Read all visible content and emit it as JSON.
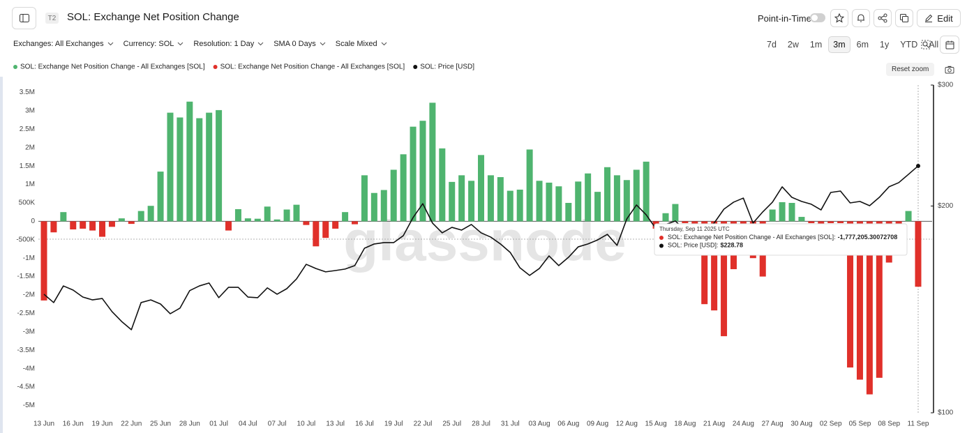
{
  "header": {
    "badge": "T2",
    "title": "SOL: Exchange Net Position Change",
    "point_in_time": "Point-in-Time",
    "edit": "Edit"
  },
  "filters": [
    "Exchanges: All Exchanges",
    "Currency: SOL",
    "Resolution: 1 Day",
    "SMA 0 Days",
    "Scale Mixed"
  ],
  "ranges": [
    "7d",
    "2w",
    "1m",
    "3m",
    "6m",
    "1y",
    "YTD",
    "All"
  ],
  "active_range": "3m",
  "reset_zoom": "Reset zoom",
  "chart_data": {
    "type": "bar",
    "watermark": "glassnode",
    "categories": [
      "13 Jun",
      null,
      null,
      "16 Jun",
      null,
      null,
      "19 Jun",
      null,
      null,
      "22 Jun",
      null,
      null,
      "25 Jun",
      null,
      null,
      "28 Jun",
      null,
      null,
      "01 Jul",
      null,
      null,
      "04 Jul",
      null,
      null,
      "07 Jul",
      null,
      null,
      "10 Jul",
      null,
      null,
      "13 Jul",
      null,
      null,
      "16 Jul",
      null,
      null,
      "19 Jul",
      null,
      null,
      "22 Jul",
      null,
      null,
      "25 Jul",
      null,
      null,
      "28 Jul",
      null,
      null,
      "31 Jul",
      null,
      null,
      "03 Aug",
      null,
      null,
      "06 Aug",
      null,
      null,
      "09 Aug",
      null,
      null,
      "12 Aug",
      null,
      null,
      "15 Aug",
      null,
      null,
      "18 Aug",
      null,
      null,
      "21 Aug",
      null,
      null,
      "24 Aug",
      null,
      null,
      "27 Aug",
      null,
      null,
      "30 Aug",
      null,
      null,
      "02 Sep",
      null,
      null,
      "05 Sep",
      null,
      null,
      "08 Sep",
      null,
      null,
      "11 Sep"
    ],
    "series": [
      {
        "name": "SOL: Exchange Net Position Change - All Exchanges [SOL]",
        "type": "bar",
        "color": "#4fb46f",
        "values": [
          null,
          null,
          250000,
          null,
          null,
          null,
          null,
          null,
          80000,
          null,
          280000,
          420000,
          1350000,
          2950000,
          2820000,
          3250000,
          2800000,
          2950000,
          3020000,
          null,
          330000,
          80000,
          70000,
          400000,
          50000,
          320000,
          450000,
          null,
          null,
          null,
          null,
          250000,
          null,
          1250000,
          770000,
          850000,
          1400000,
          1820000,
          2570000,
          2730000,
          3220000,
          1980000,
          1070000,
          1250000,
          1100000,
          1800000,
          1250000,
          1200000,
          830000,
          860000,
          1950000,
          1100000,
          1050000,
          950000,
          500000,
          1080000,
          1300000,
          800000,
          1470000,
          1250000,
          1120000,
          1400000,
          1620000,
          null,
          220000,
          470000,
          null,
          null,
          null,
          null,
          null,
          null,
          null,
          null,
          null,
          320000,
          520000,
          500000,
          120000,
          null,
          null,
          null,
          null,
          null,
          null,
          null,
          null,
          null,
          null,
          280000,
          null
        ]
      },
      {
        "name": "SOL: Exchange Net Position Change - All Exchanges [SOL]",
        "type": "bar",
        "color": "#e0302a",
        "values": [
          -2150000,
          -300000,
          null,
          -220000,
          -200000,
          -250000,
          -420000,
          -150000,
          null,
          -70000,
          null,
          null,
          null,
          null,
          null,
          null,
          null,
          null,
          null,
          -250000,
          null,
          null,
          null,
          null,
          null,
          null,
          null,
          -100000,
          -680000,
          -450000,
          -200000,
          null,
          -80000,
          null,
          null,
          null,
          null,
          null,
          null,
          null,
          null,
          null,
          null,
          null,
          null,
          null,
          null,
          null,
          null,
          null,
          null,
          null,
          null,
          null,
          null,
          null,
          null,
          null,
          null,
          null,
          null,
          null,
          null,
          -200000,
          null,
          null,
          -50000,
          -100000,
          -2250000,
          -2420000,
          -3120000,
          -1300000,
          -100000,
          -1000000,
          -1500000,
          null,
          null,
          null,
          null,
          -50000,
          -930000,
          -50000,
          -50000,
          -3970000,
          -4300000,
          -4700000,
          -4250000,
          -1120000,
          -100000,
          null,
          -1777205.30072708
        ]
      },
      {
        "name": "SOL: Price [USD]",
        "type": "line",
        "axis": "y2",
        "color": "#111111",
        "values": [
          148.8,
          144.7,
          153.0,
          150.9,
          147.4,
          146.0,
          146.7,
          140.4,
          135.8,
          132.1,
          144.7,
          146.0,
          144.0,
          139.4,
          142.0,
          150.6,
          153.0,
          154.5,
          147.1,
          152.3,
          152.3,
          147.4,
          147.1,
          152.0,
          148.8,
          151.6,
          156.6,
          164.5,
          162.2,
          160.4,
          161.1,
          161.9,
          163.8,
          173.6,
          176.1,
          176.9,
          176.9,
          181.1,
          192.4,
          201.6,
          188.9,
          182.8,
          186.2,
          184.5,
          188.0,
          182.8,
          180.2,
          176.1,
          171.2,
          162.6,
          158.5,
          162.2,
          169.2,
          163.8,
          168.4,
          174.4,
          176.1,
          178.5,
          181.9,
          175.3,
          191.5,
          200.7,
          194.2,
          185.4,
          188.0,
          190.2,
          184.5,
          186.7,
          184.5,
          188.9,
          197.9,
          202.6,
          205.4,
          188.9,
          196.1,
          202.6,
          213.3,
          205.9,
          203.1,
          201.2,
          197.4,
          209.3,
          210.3,
          202.1,
          203.1,
          200.2,
          205.9,
          213.3,
          216.3,
          222.4,
          228.78
        ]
      }
    ],
    "ylim": [
      -5200000,
      3700000
    ],
    "yticks": [
      {
        "value": 3500000,
        "label": "3.5M"
      },
      {
        "value": 3000000,
        "label": "3M"
      },
      {
        "value": 2500000,
        "label": "2.5M"
      },
      {
        "value": 2000000,
        "label": "2M"
      },
      {
        "value": 1500000,
        "label": "1.5M"
      },
      {
        "value": 1000000,
        "label": "1M"
      },
      {
        "value": 500000,
        "label": "500K"
      },
      0,
      {
        "value": -500000,
        "label": "-500K"
      },
      {
        "value": -1000000,
        "label": "-1M"
      },
      {
        "value": -1500000,
        "label": "-1.5M"
      },
      {
        "value": -2000000,
        "label": "-2M"
      },
      {
        "value": -2500000,
        "label": "-2.5M"
      },
      {
        "value": -3000000,
        "label": "-3M"
      },
      {
        "value": -3500000,
        "label": "-3.5M"
      },
      {
        "value": -4000000,
        "label": "-4M"
      },
      {
        "value": -4500000,
        "label": "-4.5M"
      },
      {
        "value": -5000000,
        "label": "-5M"
      }
    ],
    "y2lim": [
      100,
      300
    ],
    "y2scale": "log",
    "y2ticks": [
      {
        "value": 300,
        "label": "$300"
      },
      {
        "value": 200,
        "label": "$200"
      },
      {
        "value": 100,
        "label": "$100"
      }
    ],
    "grid": false,
    "tooltip": {
      "date": "Thursday, Sep 11 2025 UTC",
      "items": [
        {
          "label": "SOL: Exchange Net Position Change - All Exchanges [SOL]:",
          "value_label": "-1,777,205.30072708",
          "color": "#e0302a"
        },
        {
          "label": "SOL: Price [USD]:",
          "value_label": "$228.78",
          "color": "#111111"
        }
      ]
    }
  }
}
